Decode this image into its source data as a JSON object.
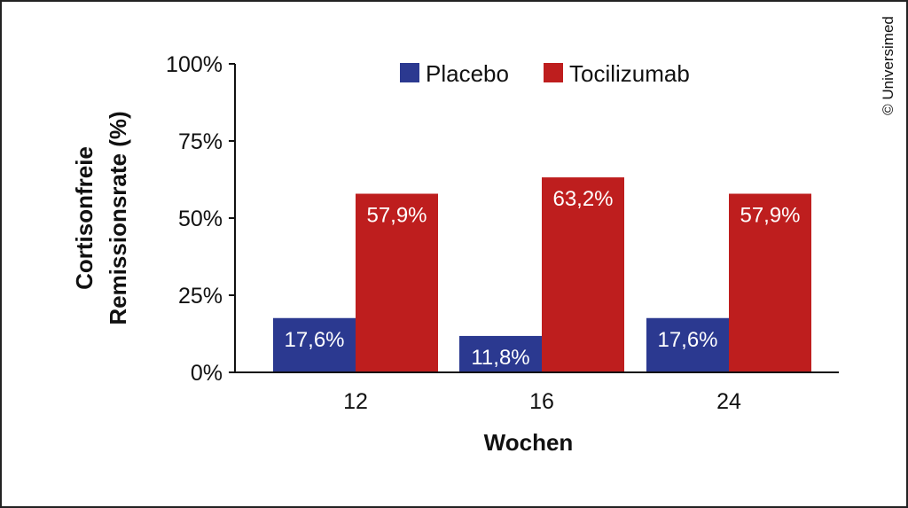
{
  "copyright": "© Universimed",
  "colors": {
    "placebo": "#2B3990",
    "tocilizumab": "#BE1E1E",
    "axis": "#111111",
    "label_text": "#ffffff"
  },
  "chart_data": {
    "type": "bar",
    "title": "",
    "xlabel": "Wochen",
    "ylabel_lines": [
      "Cortisonfreie",
      "Remissionsrate (%)"
    ],
    "categories": [
      "12",
      "16",
      "24"
    ],
    "ylim": [
      0,
      100
    ],
    "yticks": [
      0,
      25,
      50,
      75,
      100
    ],
    "ytick_labels": [
      "0%",
      "25%",
      "50%",
      "75%",
      "100%"
    ],
    "legend_position": "top",
    "grid": false,
    "series": [
      {
        "name": "Placebo",
        "values": [
          17.6,
          11.8,
          17.6
        ],
        "labels": [
          "17,6%",
          "11,8%",
          "17,6%"
        ]
      },
      {
        "name": "Tocilizumab",
        "values": [
          57.9,
          63.2,
          57.9
        ],
        "labels": [
          "57,9%",
          "63,2%",
          "57,9%"
        ]
      }
    ]
  }
}
